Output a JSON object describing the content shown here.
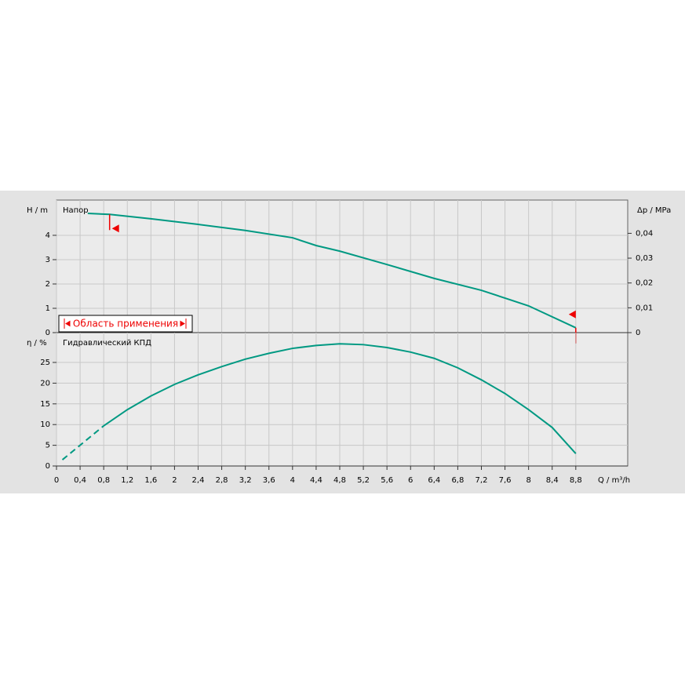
{
  "chart_data": [
    {
      "type": "line",
      "annotation": "Напор",
      "ylabel": "H / m",
      "y2label": "Δp / MPa",
      "range_label": "Область применения",
      "operating_range": [
        0.9,
        8.8
      ],
      "xlim": [
        0,
        9.68
      ],
      "ylim": [
        0,
        5.45
      ],
      "yticks": [
        0,
        1,
        2,
        3,
        4
      ],
      "y2lim": [
        0,
        0.0534
      ],
      "y2ticks": [
        0,
        {
          "value": 0.01,
          "label": "0,01"
        },
        {
          "value": 0.02,
          "label": "0,02"
        },
        {
          "value": 0.03,
          "label": "0,03"
        },
        {
          "value": 0.04,
          "label": "0,04"
        }
      ],
      "grid": true,
      "series": [
        {
          "color": "#009982",
          "line_style": "solid",
          "x": [
            0.53,
            0.9,
            1.6,
            2.4,
            3.2,
            4.0,
            4.4,
            4.8,
            5.6,
            6.4,
            7.2,
            8.0,
            8.8
          ],
          "values": [
            4.9,
            4.86,
            4.68,
            4.45,
            4.2,
            3.9,
            3.58,
            3.35,
            2.8,
            2.23,
            1.74,
            1.1,
            0.2
          ]
        }
      ]
    },
    {
      "type": "line",
      "annotation": "Гидравлический КПД",
      "ylabel": "η / %",
      "xlabel": "Q / m³/h",
      "xlim": [
        0,
        9.68
      ],
      "ylim": [
        0,
        32.2
      ],
      "yticks": [
        0,
        5,
        10,
        15,
        20,
        25
      ],
      "xticks": [
        0,
        {
          "value": 0.4,
          "label": "0,4"
        },
        {
          "value": 0.8,
          "label": "0,8"
        },
        {
          "value": 1.2,
          "label": "1,2"
        },
        {
          "value": 1.6,
          "label": "1,6"
        },
        2,
        {
          "value": 2.4,
          "label": "2,4"
        },
        {
          "value": 2.8,
          "label": "2,8"
        },
        {
          "value": 3.2,
          "label": "3,2"
        },
        {
          "value": 3.6,
          "label": "3,6"
        },
        4,
        {
          "value": 4.4,
          "label": "4,4"
        },
        {
          "value": 4.8,
          "label": "4,8"
        },
        {
          "value": 5.2,
          "label": "5,2"
        },
        {
          "value": 5.6,
          "label": "5,6"
        },
        6,
        {
          "value": 6.4,
          "label": "6,4"
        },
        {
          "value": 6.8,
          "label": "6,8"
        },
        {
          "value": 7.2,
          "label": "7,2"
        },
        {
          "value": 7.6,
          "label": "7,6"
        },
        8,
        {
          "value": 8.4,
          "label": "8,4"
        },
        {
          "value": 8.8,
          "label": "8,8"
        }
      ],
      "grid": true,
      "series": [
        {
          "color": "#009982",
          "line_style": "dashed",
          "x": [
            0.1,
            0.8
          ],
          "values": [
            1.5,
            9.7
          ]
        },
        {
          "color": "#009982",
          "line_style": "solid",
          "x": [
            0.8,
            1.2,
            1.6,
            2.0,
            2.4,
            2.8,
            3.2,
            3.6,
            4.0,
            4.4,
            4.8,
            5.2,
            5.6,
            6.0,
            6.4,
            6.8,
            7.2,
            7.6,
            8.0,
            8.4,
            8.8
          ],
          "values": [
            9.7,
            13.6,
            16.9,
            19.7,
            22.0,
            24.0,
            25.8,
            27.2,
            28.4,
            29.1,
            29.5,
            29.3,
            28.6,
            27.5,
            26.0,
            23.7,
            20.8,
            17.5,
            13.6,
            9.3,
            3.0
          ]
        }
      ]
    }
  ]
}
